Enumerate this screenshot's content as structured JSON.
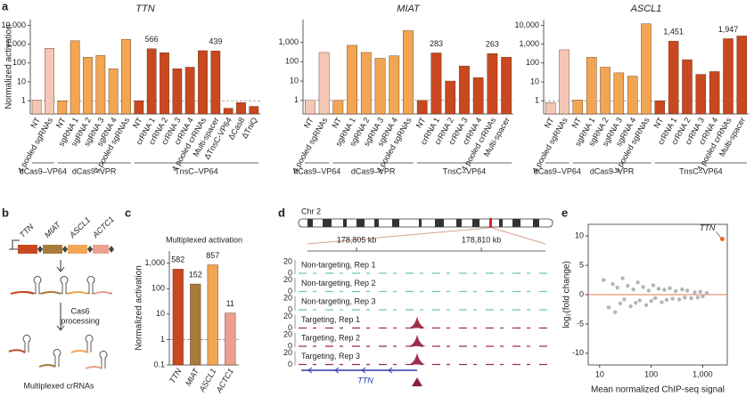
{
  "panel_labels": [
    "a",
    "b",
    "c",
    "d",
    "e"
  ],
  "chart_data": [
    {
      "type": "bar",
      "title": "TTN",
      "ylabel": "Normalized activation",
      "log_scale": true,
      "ylim": [
        0.2,
        20000
      ],
      "yticks": [
        1,
        10,
        100,
        {
          "value": 1000,
          "label": "1,000"
        },
        {
          "value": 10000,
          "label": "10,000"
        }
      ],
      "reference_line": 1,
      "groups": [
        {
          "name": "dCas9–VP64",
          "color": "#f4c6b6",
          "categories": [
            "NT",
            "4 pooled sgRNAs"
          ],
          "values": [
            1.1,
            600
          ]
        },
        {
          "name": "dCas9–VPR",
          "color": "#f2a553",
          "categories": [
            "NT",
            "sgRNA 1",
            "sgRNA 2",
            "sgRNA 3",
            "sgRNA 4",
            "4 pooled sgRNAs"
          ],
          "values": [
            1,
            1500,
            200,
            250,
            50,
            1800
          ]
        },
        {
          "name": "TnsC–VP64",
          "color": "#c9481f",
          "categories": [
            "NT",
            "crRNA 1",
            "crRNA 2",
            "crRNA 3",
            "crRNA 4",
            "4 pooled crRNAs",
            "Multi-spacer",
            "ΔTnsC-VP64",
            "ΔCas8",
            "ΔTniQ"
          ],
          "values": [
            1,
            566,
            350,
            50,
            60,
            450,
            439,
            0.4,
            0.8,
            0.5
          ],
          "value_labels": [
            null,
            "566",
            null,
            null,
            null,
            null,
            "439",
            null,
            null,
            null
          ]
        }
      ]
    },
    {
      "type": "bar",
      "title": "MIAT",
      "log_scale": true,
      "ylim": [
        0.2,
        15000
      ],
      "yticks": [
        1,
        10,
        100,
        {
          "value": 1000,
          "label": "1,000"
        }
      ],
      "reference_line": 1,
      "groups": [
        {
          "name": "dCas9–VP64",
          "color": "#f4c6b6",
          "categories": [
            "NT",
            "4 pooled sgRNAs"
          ],
          "values": [
            1,
            300
          ]
        },
        {
          "name": "dCas9–VPR",
          "color": "#f2a553",
          "categories": [
            "NT",
            "sgRNA 1",
            "sgRNA 2",
            "sgRNA 3",
            "sgRNA 4",
            "4 pooled sgRNAs"
          ],
          "values": [
            1,
            700,
            300,
            150,
            200,
            4000
          ]
        },
        {
          "name": "TnsC–VP64",
          "color": "#c9481f",
          "categories": [
            "NT",
            "crRNA 1",
            "crRNA 2",
            "crRNA 3",
            "crRNA 4",
            "4 pooled crRNAs",
            "Multi-spacer"
          ],
          "values": [
            1,
            283,
            10,
            60,
            15,
            263,
            170
          ],
          "value_labels": [
            null,
            "283",
            null,
            null,
            null,
            "263",
            null
          ]
        }
      ]
    },
    {
      "type": "bar",
      "title": "ASCL1",
      "log_scale": true,
      "ylim": [
        0.2,
        20000
      ],
      "yticks": [
        1,
        10,
        100,
        {
          "value": 1000,
          "label": "1,000"
        },
        {
          "value": 10000,
          "label": "10,000"
        }
      ],
      "reference_line": 1,
      "groups": [
        {
          "name": "dCas9–VP64",
          "color": "#f4c6b6",
          "categories": [
            "NT",
            "4 pooled sgRNAs"
          ],
          "values": [
            0.8,
            500
          ]
        },
        {
          "name": "dCas9–VPR",
          "color": "#f2a553",
          "categories": [
            "NT",
            "sgRNA 1",
            "sgRNA 2",
            "sgRNA 3",
            "sgRNA 4",
            "4 pooled sgRNAs"
          ],
          "values": [
            1.1,
            200,
            60,
            30,
            20,
            12000
          ]
        },
        {
          "name": "TnsC–VP64",
          "color": "#c9481f",
          "categories": [
            "NT",
            "crRNA 1",
            "crRNA 2",
            "crRNA 3",
            "crRNA 4",
            "4 pooled crRNAs",
            "Multi-spacer"
          ],
          "values": [
            1,
            1451,
            150,
            25,
            35,
            1947,
            2700
          ],
          "value_labels": [
            null,
            "1,451",
            null,
            null,
            null,
            "1,947",
            null
          ]
        }
      ]
    },
    {
      "type": "bar",
      "title": "Multiplexed activation",
      "ylabel": "Normalized activation",
      "log_scale": true,
      "ylim": [
        0.1,
        3000
      ],
      "yticks": [
        0.1,
        1,
        10,
        100,
        {
          "value": 1000,
          "label": "1,000"
        }
      ],
      "reference_line": 1,
      "categories": [
        "TTN",
        "MIAT",
        "ASCL1",
        "ACTC1"
      ],
      "values": [
        582,
        152,
        857,
        11
      ],
      "colors": [
        "#c9481f",
        "#a97b3b",
        "#f2a553",
        "#eda08f"
      ]
    },
    {
      "type": "scatter",
      "xlabel": "Mean normalized ChIP-seq signal",
      "ylabel": "log₂(fold change)",
      "x_log_scale": true,
      "xlim": [
        6,
        3000
      ],
      "xticks": [
        10,
        100,
        {
          "value": 1000,
          "label": "1,000"
        }
      ],
      "ylim": [
        -12,
        12
      ],
      "yticks": [
        -10,
        -5,
        0,
        5,
        10
      ],
      "reference_line": 0,
      "points": {
        "color": "#b5b5b5",
        "x": [
          12,
          15,
          18,
          20,
          22,
          25,
          28,
          30,
          35,
          40,
          45,
          50,
          55,
          60,
          70,
          80,
          90,
          100,
          110,
          120,
          140,
          160,
          180,
          200,
          230,
          260,
          300,
          350,
          400,
          450,
          500,
          600,
          700,
          800,
          900,
          1000,
          1200
        ],
        "y": [
          2.5,
          -2.2,
          1.8,
          -3,
          1.2,
          -1.5,
          2.8,
          -0.8,
          1.5,
          -2,
          0.9,
          -1.4,
          2.1,
          -1,
          1.3,
          -1.8,
          0.7,
          -1.1,
          1.6,
          -0.6,
          1.0,
          -1.3,
          0.8,
          -0.9,
          1.1,
          -0.7,
          0.6,
          -0.8,
          0.9,
          -0.5,
          0.7,
          -0.6,
          0.4,
          -0.5,
          0.5,
          -0.3,
          0.3
        ]
      },
      "highlight": {
        "label": "TTN",
        "color": "#e2701f",
        "x": [
          2400
        ],
        "y": [
          9.5
        ]
      }
    }
  ],
  "diagram": {
    "genes": [
      "TTN",
      "MIAT",
      "ASCL1",
      "ACTC1"
    ],
    "step_lines": [
      "Cas6",
      "processing"
    ],
    "output": "Multiplexed crRNAs"
  },
  "genome": {
    "chromosome": "Chr 2",
    "coordinates": [
      "178,805 kb",
      "178,810 kb"
    ],
    "track_max": "20",
    "track_min": "0",
    "tracks": [
      {
        "label": "Non-targeting, Rep 1",
        "color": "#6cc3bb",
        "peak": false
      },
      {
        "label": "Non-targeting, Rep 2",
        "color": "#6cc3bb",
        "peak": false
      },
      {
        "label": "Non-targeting, Rep 3",
        "color": "#6cc3bb",
        "peak": false
      },
      {
        "label": "Targeting, Rep 1",
        "color": "#9e2f4a",
        "peak": true
      },
      {
        "label": "Targeting, Rep 2",
        "color": "#9e2f4a",
        "peak": true
      },
      {
        "label": "Targeting, Rep 3",
        "color": "#9e2f4a",
        "peak": true
      }
    ],
    "gene": "TTN"
  }
}
